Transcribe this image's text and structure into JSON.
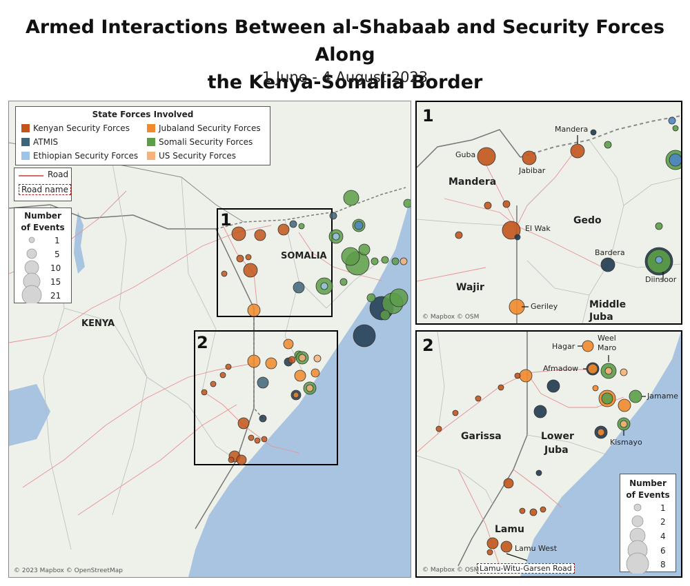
{
  "header": {
    "title_line1": "Armed Interactions Between al-Shabaab and Security Forces Along",
    "title_line2": "the Kenya-Somalia Border",
    "subtitle": "1 June - 4 August 2023"
  },
  "legend_state": {
    "title": "State Forces Involved",
    "items": [
      {
        "label": "Kenyan Security Forces",
        "color": "#c1551b"
      },
      {
        "label": "Jubaland Security Forces",
        "color": "#f08a2c"
      },
      {
        "label": "ATMIS",
        "color": "#3f6478"
      },
      {
        "label": "Somali Security Forces",
        "color": "#5c9e48"
      },
      {
        "label": "Ethiopian Security Forces",
        "color": "#9ec5e6"
      },
      {
        "label": "US Security Forces",
        "color": "#f5b27a"
      }
    ]
  },
  "legend_road": {
    "road_label": "Road",
    "road_name_label": "Road name",
    "road_color": "#c93a3a"
  },
  "legend_events_main": {
    "title_line1": "Number",
    "title_line2": "of Events",
    "values": [
      "1",
      "5",
      "10",
      "15",
      "21"
    ]
  },
  "legend_events_inset2": {
    "title_line1": "Number",
    "title_line2": "of Events",
    "values": [
      "1",
      "2",
      "4",
      "6",
      "8"
    ]
  },
  "colors": {
    "land": "#eef1e9",
    "water": "#a8c4e0",
    "border": "#7a7a7a",
    "road": "#e89090"
  },
  "main_map": {
    "labels": {
      "kenya": "KENYA",
      "somalia": "SOMALIA"
    },
    "inset1_number": "1",
    "inset2_number": "2",
    "credit": "© 2023 Mapbox © OpenStreetMap"
  },
  "inset1": {
    "number": "1",
    "regions": {
      "mandera": "Mandera",
      "gedo": "Gedo",
      "wajir": "Wajir",
      "middle_juba_1": "Middle",
      "middle_juba_2": "Juba"
    },
    "places": {
      "guba": "Guba",
      "jabibar": "Jabibar",
      "mandera_town": "Mandera",
      "el_wak": "El Wak",
      "bardera": "Bardera",
      "diinsoor": "Diinsoor",
      "geriley": "Geriley"
    },
    "credit": "© Mapbox © OSM"
  },
  "inset2": {
    "number": "2",
    "regions": {
      "garissa": "Garissa",
      "lower_juba_1": "Lower",
      "lower_juba_2": "Juba",
      "lamu": "Lamu"
    },
    "places": {
      "hagar": "Hagar",
      "weel_maro_1": "Weel",
      "weel_maro_2": "Maro",
      "afmadow": "Afmadow",
      "jamame": "Jamame",
      "kismayo": "Kismayo",
      "lamu_west": "Lamu West"
    },
    "road_name": "Lamu-Witu-Garsen Road",
    "credit": "© Mapbox © OSM"
  }
}
